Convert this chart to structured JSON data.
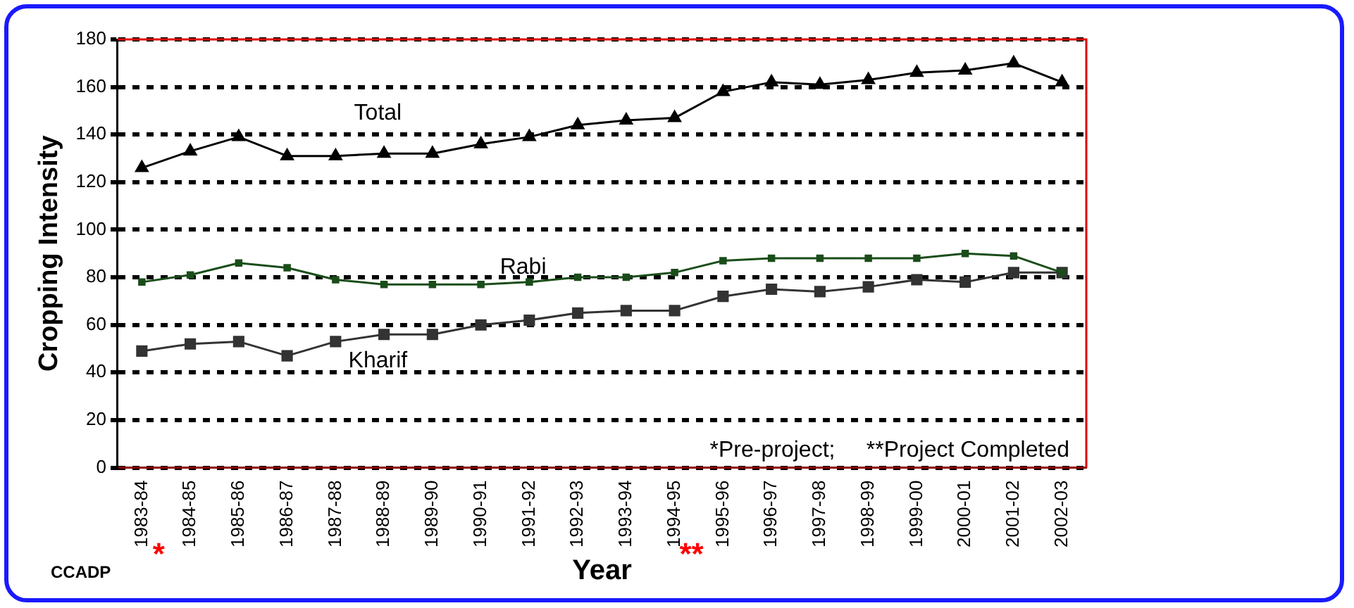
{
  "chart_data": {
    "type": "line",
    "xlabel": "Year",
    "ylabel": "Cropping Intensity",
    "categories": [
      "1983-84",
      "1984-85",
      "1985-86",
      "1986-87",
      "1987-88",
      "1988-89",
      "1989-90",
      "1990-91",
      "1991-92",
      "1992-93",
      "1993-94",
      "1994-95",
      "1995-96",
      "1996-97",
      "1997-98",
      "1998-99",
      "1999-00",
      "2000-01",
      "2001-02",
      "2002-03"
    ],
    "series": [
      {
        "name": "Total",
        "color": "#000000",
        "marker": "triangle",
        "values": [
          126,
          133,
          139,
          131,
          131,
          132,
          132,
          136,
          139,
          144,
          146,
          147,
          158,
          162,
          161,
          163,
          166,
          167,
          170,
          162
        ]
      },
      {
        "name": "Rabi",
        "color": "#1a4d1a",
        "marker": "square",
        "values": [
          78,
          81,
          86,
          84,
          79,
          77,
          77,
          77,
          78,
          80,
          80,
          82,
          87,
          88,
          88,
          88,
          88,
          90,
          89,
          82
        ]
      },
      {
        "name": "Kharif",
        "color": "#333333",
        "marker": "square",
        "values": [
          49,
          52,
          53,
          47,
          53,
          56,
          56,
          60,
          62,
          65,
          66,
          66,
          72,
          75,
          74,
          76,
          79,
          78,
          82,
          82
        ]
      }
    ],
    "ylim": [
      0,
      180
    ],
    "yticks": [
      0,
      20,
      40,
      60,
      80,
      100,
      120,
      140,
      160,
      180
    ],
    "grid": "y",
    "line_style": "solid",
    "annotations": [
      "*Pre-project;     **Project Completed",
      "CCADP",
      "*",
      "**"
    ]
  }
}
